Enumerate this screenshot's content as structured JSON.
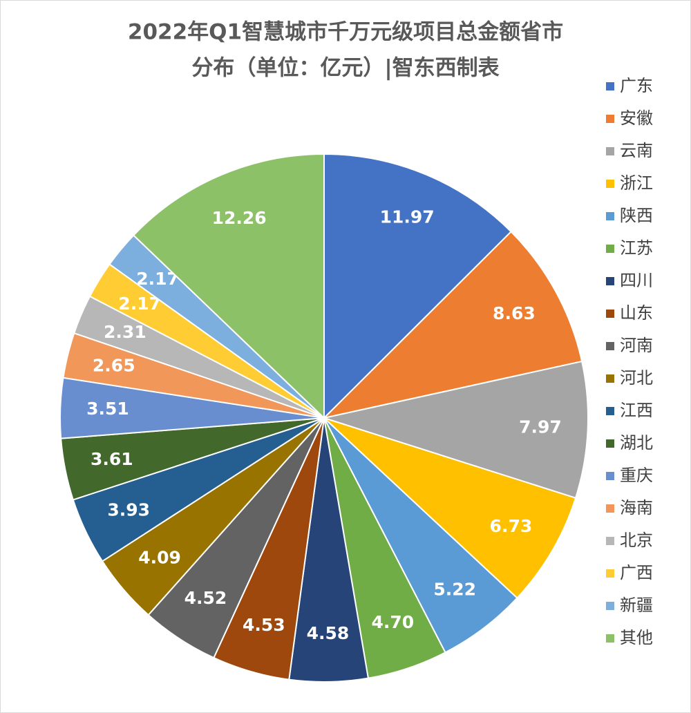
{
  "chart_data": {
    "type": "pie",
    "title": [
      "2022年Q1智慧城市千万元级项目总金额省市",
      "分布（单位：亿元）|智东西制表"
    ],
    "categories": [
      "广东",
      "安徽",
      "云南",
      "浙江",
      "陕西",
      "江苏",
      "四川",
      "山东",
      "河南",
      "河北",
      "江西",
      "湖北",
      "重庆",
      "海南",
      "北京",
      "广西",
      "新疆",
      "其他"
    ],
    "values": [
      11.97,
      8.63,
      7.97,
      6.73,
      5.22,
      4.7,
      4.58,
      4.53,
      4.52,
      4.09,
      3.93,
      3.61,
      3.51,
      2.65,
      2.31,
      2.17,
      2.17,
      12.26
    ],
    "value_labels": [
      "11.97",
      "8.63",
      "7.97",
      "6.73",
      "5.22",
      "4.70",
      "4.58",
      "4.53",
      "4.52",
      "4.09",
      "3.93",
      "3.61",
      "3.51",
      "2.65",
      "2.31",
      "2.17",
      "2.17",
      "12.26"
    ],
    "colors": [
      "#4472c4",
      "#ed7d31",
      "#a5a5a5",
      "#ffc000",
      "#5b9bd5",
      "#70ad47",
      "#264478",
      "#9e480e",
      "#636363",
      "#997300",
      "#255e91",
      "#43682b",
      "#698ed0",
      "#f1975a",
      "#b7b7b7",
      "#ffcd33",
      "#7cafdd",
      "#8cc168"
    ],
    "legend": "right"
  }
}
